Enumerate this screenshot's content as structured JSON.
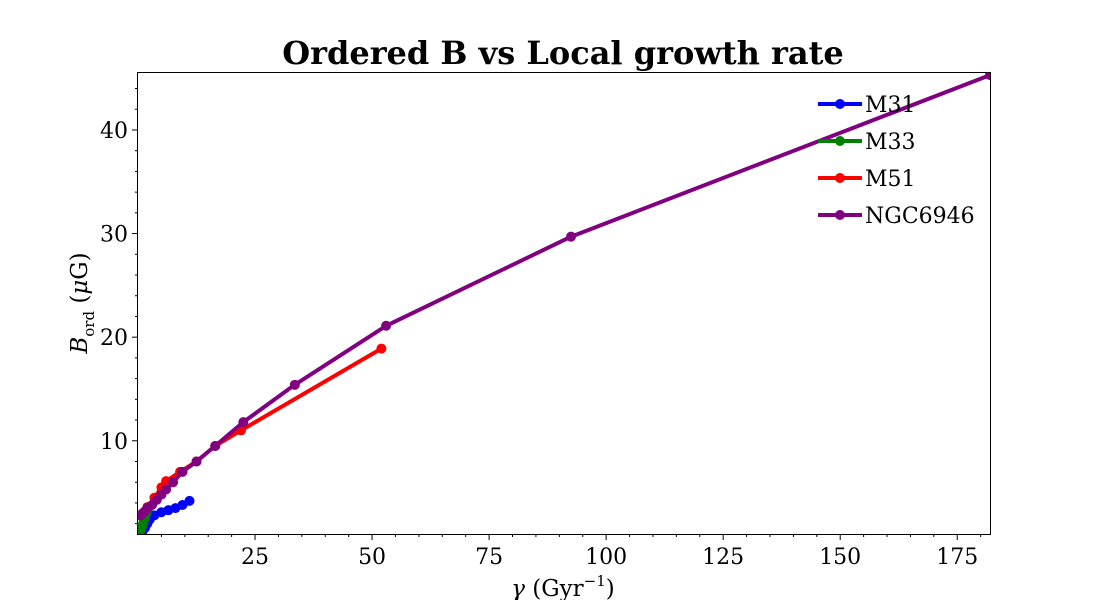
{
  "chart_data": {
    "type": "line",
    "title": "Ordered B vs Local growth rate",
    "xlabel": "γ (Gyr⁻¹)",
    "ylabel": "B_ord (μG)",
    "xlim": [
      0,
      182
    ],
    "ylim": [
      1,
      45.5
    ],
    "xticks": [
      25,
      50,
      75,
      100,
      125,
      150,
      175
    ],
    "yticks": [
      10,
      20,
      30,
      40
    ],
    "legend_position": "upper right",
    "grid": false,
    "series": [
      {
        "name": "M31",
        "color": "#0000ff",
        "x": [
          0.5,
          1.0,
          1.5,
          2.0,
          2.5,
          3.5,
          5.0,
          6.5,
          8.0,
          9.5,
          11.0
        ],
        "y": [
          1.0,
          1.3,
          1.6,
          2.0,
          2.4,
          2.8,
          3.1,
          3.3,
          3.5,
          3.8,
          4.2
        ]
      },
      {
        "name": "M33",
        "color": "#008000",
        "x": [
          0.3,
          0.6,
          0.9,
          1.2,
          1.5,
          1.8,
          2.1
        ],
        "y": [
          1.0,
          1.4,
          1.8,
          2.2,
          2.6,
          3.0,
          3.4
        ]
      },
      {
        "name": "M51",
        "color": "#ff0000",
        "x": [
          0.5,
          2.0,
          3.5,
          5.0,
          6.0,
          9.0,
          12.5,
          16.5,
          22.0,
          52.0
        ],
        "y": [
          2.8,
          3.6,
          4.5,
          5.5,
          6.1,
          7.0,
          8.0,
          9.5,
          11.0,
          18.9
        ]
      },
      {
        "name": "NGC6946",
        "color": "#800080",
        "x": [
          0.5,
          1.0,
          1.5,
          2.0,
          3.0,
          4.0,
          5.0,
          6.0,
          7.5,
          9.5,
          12.5,
          16.5,
          22.5,
          33.5,
          53.0,
          92.5,
          182.0
        ],
        "y": [
          2.8,
          3.0,
          3.2,
          3.5,
          3.8,
          4.3,
          4.8,
          5.3,
          6.0,
          7.0,
          8.0,
          9.5,
          11.8,
          15.4,
          21.1,
          29.7,
          45.3
        ]
      }
    ]
  }
}
